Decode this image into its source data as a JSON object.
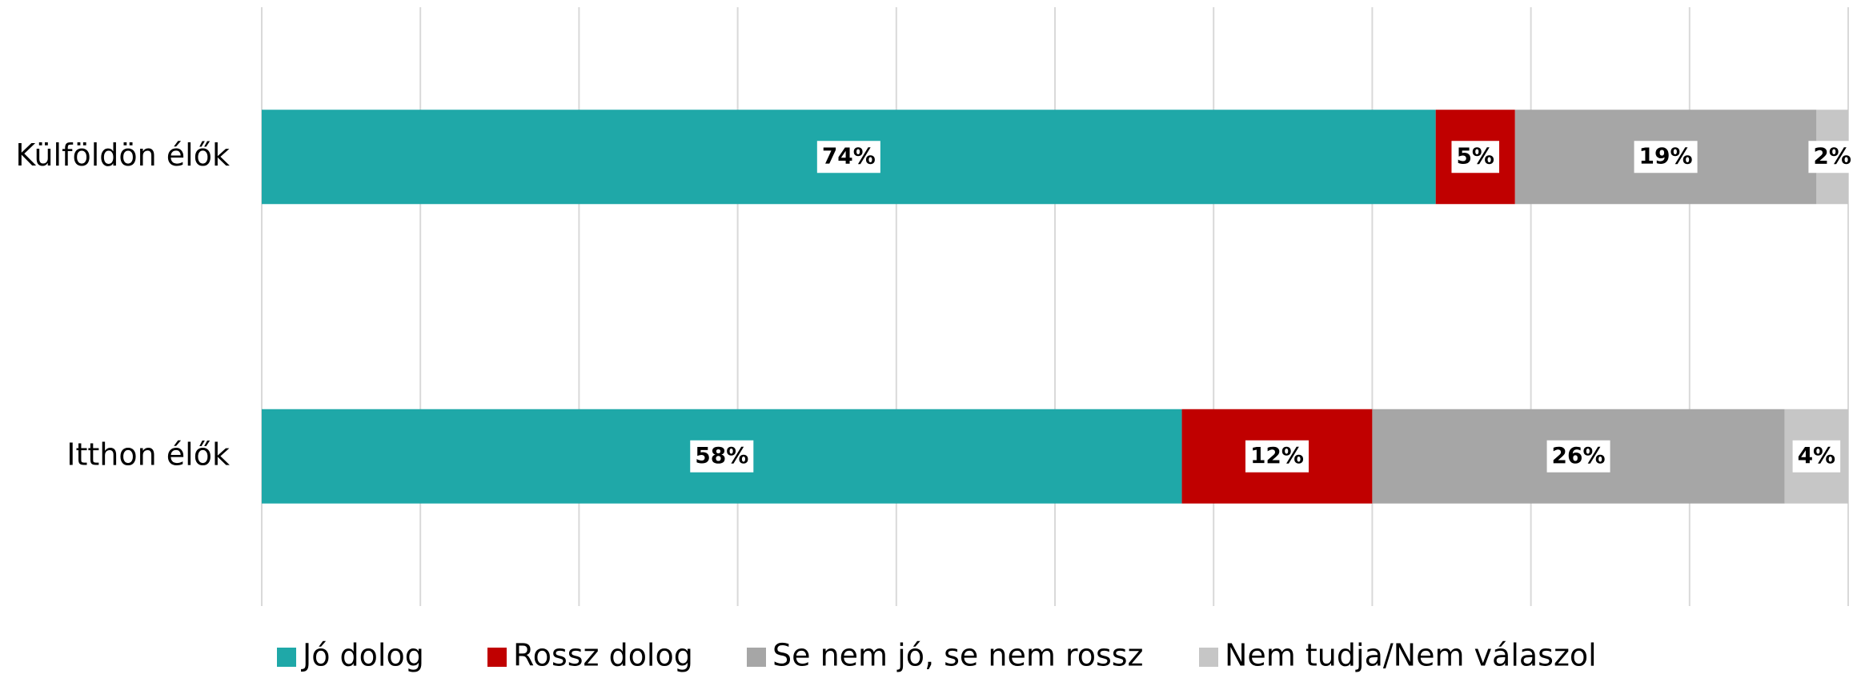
{
  "chart_data": {
    "type": "stacked-bar-horizontal",
    "categories": [
      "Külföldön élők",
      "Itthon élők"
    ],
    "series": [
      {
        "name": "Jó dolog",
        "color": "#1fa8a8",
        "values": [
          74,
          58
        ],
        "value_labels": [
          "74%",
          "58%"
        ]
      },
      {
        "name": "Rossz dolog",
        "color": "#c00000",
        "values": [
          5,
          12
        ],
        "value_labels": [
          "5%",
          "12%"
        ]
      },
      {
        "name": "Se nem jó, se nem rossz",
        "color": "#a6a6a6",
        "values": [
          19,
          26
        ],
        "value_labels": [
          "19%",
          "26%"
        ]
      },
      {
        "name": "Nem tudja/Nem válaszol",
        "color": "#c6c6c6",
        "values": [
          2,
          4
        ],
        "value_labels": [
          "2%",
          "4%"
        ]
      }
    ],
    "xlim": [
      0,
      100
    ],
    "xticks": [
      0,
      10,
      20,
      30,
      40,
      50,
      60,
      70,
      80,
      90,
      100
    ],
    "grid": true,
    "legend": "bottom"
  }
}
